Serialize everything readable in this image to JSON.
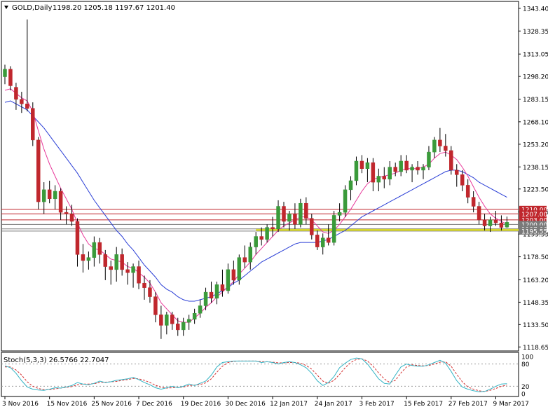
{
  "header": {
    "symbol_timeframe": "GOLD,Daily",
    "ohlc": "1198.20 1205.18 1197.67 1201.40"
  },
  "oscillator": {
    "label": "Stoch(5,3,3) 26.5766 22.7047",
    "levels": [
      80,
      20
    ],
    "scale_labels": [
      "100",
      "80",
      "20",
      "0"
    ]
  },
  "colors": {
    "bull": "#3a9a3a",
    "bear": "#c0272d",
    "ma_fast": "#e8399a",
    "ma_slow": "#2b3fd6",
    "stoch_main": "#33b3c4",
    "stoch_signal": "#d42f2f",
    "level_red": "#c0272d",
    "level_grey": "#7a7a7a",
    "zone_yellow": "#f2f21a"
  },
  "chart_data": [
    {
      "type": "candlestick",
      "price_axis_ticks": [
        1343.4,
        1328.35,
        1313.05,
        1298.2,
        1283.15,
        1268.1,
        1253.2,
        1238.15,
        1223.5,
        1208.25,
        1193.55,
        1178.5,
        1163.2,
        1148.35,
        1133.5,
        1118.65
      ],
      "ylim": [
        1116,
        1348
      ],
      "date_labels": [
        "3 Nov 2016",
        "15 Nov 2016",
        "25 Nov 2016",
        "7 Dec 2016",
        "19 Dec 2016",
        "30 Dec 2016",
        "12 Jan 2017",
        "24 Jan 2017",
        "3 Feb 2017",
        "15 Feb 2017",
        "27 Feb 2017",
        "9 Mar 2017"
      ],
      "date_label_bars": [
        0,
        8,
        16,
        24,
        32,
        40,
        48,
        56,
        64,
        72,
        80,
        88
      ],
      "horizontal_levels": [
        {
          "price": 1210.0,
          "label": "1210.00",
          "color": "#c0272d"
        },
        {
          "price": 1207.0,
          "label": "1207.00",
          "color": "#c0272d"
        },
        {
          "price": 1203.0,
          "label": "1203.00",
          "color": "#c0272d"
        },
        {
          "price": 1200.0,
          "label": "1200.00",
          "color": "#7a7a7a"
        },
        {
          "price": 1197.0,
          "label": "1197.00",
          "color": "#7a7a7a"
        },
        {
          "price": 1195.55,
          "label": "1195.55",
          "color": "#7a7a7a"
        }
      ],
      "support_zone": {
        "from": 1195.5,
        "to": 1197.2,
        "start_bar": 45
      },
      "ohlc": [
        [
          1298,
          1306,
          1293,
          1303
        ],
        [
          1303,
          1305,
          1289,
          1292
        ],
        [
          1291,
          1294,
          1276,
          1283
        ],
        [
          1283,
          1288,
          1274,
          1280
        ],
        [
          1280,
          1336,
          1275,
          1277
        ],
        [
          1277,
          1281,
          1252,
          1256
        ],
        [
          1256,
          1258,
          1210,
          1215
        ],
        [
          1215,
          1228,
          1207,
          1223
        ],
        [
          1223,
          1229,
          1214,
          1217
        ],
        [
          1217,
          1226,
          1210,
          1222
        ],
        [
          1222,
          1224,
          1203,
          1208
        ],
        [
          1208,
          1212,
          1200,
          1207
        ],
        [
          1207,
          1213,
          1199,
          1202
        ],
        [
          1202,
          1204,
          1172,
          1180
        ],
        [
          1180,
          1187,
          1168,
          1176
        ],
        [
          1176,
          1182,
          1170,
          1178
        ],
        [
          1178,
          1192,
          1172,
          1188
        ],
        [
          1188,
          1191,
          1174,
          1180
        ],
        [
          1180,
          1183,
          1163,
          1172
        ],
        [
          1172,
          1176,
          1160,
          1170
        ],
        [
          1170,
          1185,
          1162,
          1180
        ],
        [
          1180,
          1184,
          1166,
          1170
        ],
        [
          1170,
          1175,
          1160,
          1168
        ],
        [
          1168,
          1174,
          1158,
          1172
        ],
        [
          1172,
          1176,
          1157,
          1161
        ],
        [
          1161,
          1166,
          1150,
          1158
        ],
        [
          1158,
          1163,
          1148,
          1152
        ],
        [
          1152,
          1155,
          1135,
          1140
        ],
        [
          1140,
          1146,
          1124,
          1133
        ],
        [
          1133,
          1142,
          1127,
          1140
        ],
        [
          1140,
          1142,
          1130,
          1134
        ],
        [
          1134,
          1138,
          1126,
          1130
        ],
        [
          1130,
          1138,
          1126,
          1135
        ],
        [
          1135,
          1140,
          1130,
          1137
        ],
        [
          1137,
          1144,
          1134,
          1141
        ],
        [
          1141,
          1150,
          1138,
          1146
        ],
        [
          1146,
          1158,
          1143,
          1155
        ],
        [
          1155,
          1162,
          1148,
          1151
        ],
        [
          1151,
          1162,
          1147,
          1160
        ],
        [
          1160,
          1170,
          1152,
          1156
        ],
        [
          1156,
          1174,
          1154,
          1170
        ],
        [
          1170,
          1176,
          1160,
          1163
        ],
        [
          1163,
          1180,
          1160,
          1178
        ],
        [
          1178,
          1186,
          1171,
          1175
        ],
        [
          1175,
          1188,
          1170,
          1185
        ],
        [
          1185,
          1195,
          1180,
          1192
        ],
        [
          1192,
          1198,
          1186,
          1190
        ],
        [
          1190,
          1200,
          1188,
          1198
        ],
        [
          1198,
          1205,
          1192,
          1197
        ],
        [
          1197,
          1216,
          1195,
          1212
        ],
        [
          1212,
          1215,
          1198,
          1202
        ],
        [
          1202,
          1209,
          1196,
          1207
        ],
        [
          1207,
          1214,
          1197,
          1200
        ],
        [
          1200,
          1217,
          1198,
          1214
        ],
        [
          1214,
          1218,
          1200,
          1204
        ],
        [
          1204,
          1207,
          1190,
          1193
        ],
        [
          1193,
          1196,
          1183,
          1185
        ],
        [
          1185,
          1194,
          1180,
          1191
        ],
        [
          1191,
          1200,
          1186,
          1188
        ],
        [
          1188,
          1209,
          1186,
          1206
        ],
        [
          1206,
          1214,
          1202,
          1208
        ],
        [
          1208,
          1226,
          1205,
          1223
        ],
        [
          1223,
          1232,
          1216,
          1229
        ],
        [
          1229,
          1245,
          1226,
          1242
        ],
        [
          1242,
          1246,
          1234,
          1237
        ],
        [
          1237,
          1244,
          1228,
          1241
        ],
        [
          1241,
          1244,
          1222,
          1228
        ],
        [
          1228,
          1237,
          1222,
          1232
        ],
        [
          1232,
          1238,
          1224,
          1230
        ],
        [
          1230,
          1242,
          1226,
          1238
        ],
        [
          1238,
          1241,
          1232,
          1235
        ],
        [
          1235,
          1246,
          1232,
          1242
        ],
        [
          1242,
          1246,
          1234,
          1236
        ],
        [
          1236,
          1240,
          1228,
          1238
        ],
        [
          1238,
          1242,
          1233,
          1236
        ],
        [
          1236,
          1240,
          1230,
          1238
        ],
        [
          1238,
          1252,
          1236,
          1248
        ],
        [
          1248,
          1258,
          1244,
          1256
        ],
        [
          1256,
          1264,
          1248,
          1252
        ],
        [
          1252,
          1260,
          1245,
          1249
        ],
        [
          1249,
          1252,
          1233,
          1236
        ],
        [
          1236,
          1240,
          1225,
          1233
        ],
        [
          1233,
          1236,
          1222,
          1226
        ],
        [
          1226,
          1230,
          1214,
          1218
        ],
        [
          1218,
          1222,
          1208,
          1212
        ],
        [
          1212,
          1215,
          1200,
          1203
        ],
        [
          1203,
          1207,
          1196,
          1199
        ],
        [
          1199,
          1205,
          1195,
          1203
        ],
        [
          1203,
          1209,
          1199,
          1201
        ],
        [
          1201,
          1206,
          1196,
          1198
        ],
        [
          1198.2,
          1205.18,
          1197.67,
          1201.4
        ]
      ],
      "ma_fast": [
        1289,
        1290,
        1287,
        1284,
        1282,
        1275,
        1262,
        1250,
        1240,
        1232,
        1224,
        1217,
        1210,
        1201,
        1193,
        1187,
        1184,
        1183,
        1180,
        1177,
        1176,
        1175,
        1172,
        1171,
        1168,
        1165,
        1161,
        1155,
        1148,
        1144,
        1140,
        1136,
        1135,
        1135,
        1138,
        1141,
        1145,
        1148,
        1152,
        1155,
        1159,
        1162,
        1167,
        1171,
        1175,
        1180,
        1184,
        1188,
        1192,
        1196,
        1199,
        1201,
        1203,
        1205,
        1205,
        1203,
        1199,
        1195,
        1194,
        1196,
        1200,
        1205,
        1210,
        1216,
        1222,
        1227,
        1230,
        1231,
        1232,
        1233,
        1234,
        1236,
        1237,
        1237,
        1237,
        1238,
        1240,
        1244,
        1247,
        1248,
        1246,
        1243,
        1238,
        1232,
        1225,
        1218,
        1212,
        1207,
        1204,
        1202,
        1200
      ],
      "ma_slow": [
        1281,
        1282,
        1280,
        1278,
        1276,
        1272,
        1268,
        1264,
        1259,
        1254,
        1249,
        1244,
        1239,
        1234,
        1228,
        1222,
        1216,
        1211,
        1206,
        1201,
        1196,
        1192,
        1187,
        1183,
        1178,
        1173,
        1169,
        1165,
        1160,
        1157,
        1155,
        1152,
        1150,
        1149,
        1149,
        1150,
        1151,
        1152,
        1154,
        1156,
        1158,
        1161,
        1163,
        1166,
        1169,
        1172,
        1175,
        1177,
        1179,
        1181,
        1183,
        1185,
        1187,
        1188,
        1188,
        1188,
        1188,
        1189,
        1190,
        1192,
        1194,
        1196,
        1199,
        1202,
        1205,
        1207,
        1209,
        1211,
        1213,
        1215,
        1217,
        1219,
        1221,
        1223,
        1225,
        1227,
        1229,
        1231,
        1233,
        1235,
        1236,
        1236,
        1235,
        1233,
        1231,
        1228,
        1226,
        1224,
        1222,
        1220,
        1218
      ]
    },
    {
      "type": "line",
      "name": "Stoch(5,3,3)",
      "ylim": [
        0,
        100
      ],
      "series": [
        {
          "name": "main",
          "values": [
            75,
            70,
            55,
            35,
            18,
            12,
            10,
            9,
            12,
            16,
            15,
            18,
            22,
            30,
            26,
            24,
            28,
            34,
            30,
            32,
            36,
            38,
            40,
            44,
            38,
            30,
            24,
            16,
            12,
            16,
            20,
            16,
            20,
            26,
            22,
            28,
            34,
            50,
            72,
            84,
            86,
            88,
            88,
            88,
            88,
            88,
            84,
            86,
            84,
            80,
            84,
            86,
            84,
            78,
            70,
            55,
            35,
            22,
            30,
            46,
            70,
            82,
            92,
            96,
            94,
            80,
            60,
            40,
            28,
            26,
            50,
            72,
            80,
            76,
            74,
            74,
            78,
            84,
            90,
            82,
            60,
            35,
            18,
            12,
            8,
            5,
            6,
            12,
            20,
            26,
            27
          ]
        },
        {
          "name": "signal",
          "values": [
            72,
            72,
            64,
            50,
            32,
            20,
            14,
            11,
            11,
            13,
            15,
            17,
            19,
            24,
            26,
            26,
            27,
            30,
            31,
            32,
            33,
            36,
            38,
            41,
            40,
            36,
            30,
            23,
            17,
            15,
            16,
            17,
            18,
            22,
            23,
            25,
            29,
            40,
            58,
            74,
            84,
            87,
            88,
            88,
            88,
            88,
            86,
            86,
            85,
            83,
            83,
            84,
            84,
            82,
            76,
            66,
            50,
            34,
            28,
            36,
            52,
            70,
            84,
            92,
            94,
            88,
            74,
            56,
            40,
            30,
            36,
            56,
            72,
            78,
            76,
            75,
            76,
            80,
            85,
            86,
            74,
            52,
            32,
            18,
            12,
            8,
            6,
            9,
            14,
            20,
            23
          ]
        }
      ]
    }
  ]
}
